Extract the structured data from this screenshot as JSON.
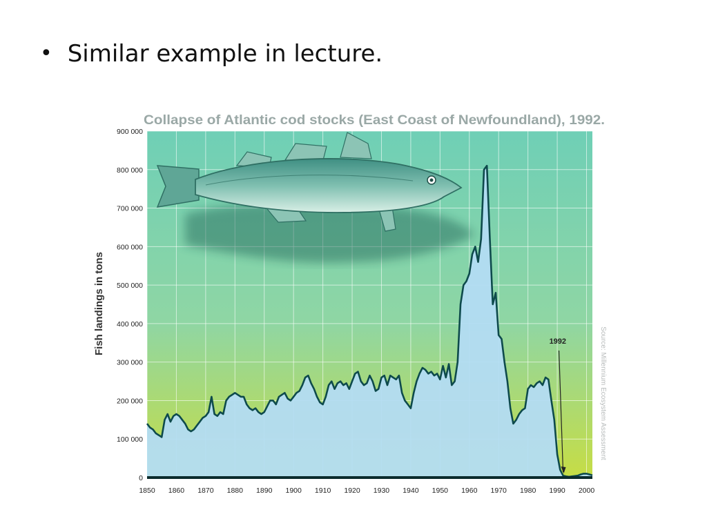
{
  "slide": {
    "bullet_symbol": "•",
    "bullet_text": "Similar example in lecture."
  },
  "chart_data": {
    "type": "area",
    "title": "Collapse of Atlantic cod stocks (East Coast of Newfoundland), 1992.",
    "xlabel": "",
    "ylabel": "Fish landings in tons",
    "source": "Source: Millennium Ecosystem Assessment",
    "annotation": {
      "label": "1992",
      "x": 1992
    },
    "xlim": [
      1850,
      2002
    ],
    "ylim": [
      0,
      900000
    ],
    "x_ticks": [
      1850,
      1860,
      1870,
      1880,
      1890,
      1900,
      1910,
      1920,
      1930,
      1940,
      1950,
      1960,
      1970,
      1980,
      1990,
      2000
    ],
    "y_ticks": [
      0,
      100000,
      200000,
      300000,
      400000,
      500000,
      600000,
      700000,
      800000,
      900000
    ],
    "y_tick_labels": [
      "0",
      "100 000",
      "200 000",
      "300 000",
      "400 000",
      "500 000",
      "600 000",
      "700 000",
      "800 000",
      "900 000"
    ],
    "grid": true,
    "colors": {
      "area_fill": "#b3dcf3",
      "line": "#0e4a4c",
      "bg_top": "#6fcfb6",
      "bg_bottom": "#c6dd45",
      "title": "#9aa8a6"
    },
    "series": [
      {
        "x": [
          1850,
          1851,
          1852,
          1853,
          1854,
          1855,
          1856,
          1857,
          1858,
          1859,
          1860,
          1861,
          1862,
          1863,
          1864,
          1865,
          1866,
          1867,
          1868,
          1869,
          1870,
          1871,
          1872,
          1873,
          1874,
          1875,
          1876,
          1877,
          1878,
          1879,
          1880,
          1881,
          1882,
          1883,
          1884,
          1885,
          1886,
          1887,
          1888,
          1889,
          1890,
          1891,
          1892,
          1893,
          1894,
          1895,
          1896,
          1897,
          1898,
          1899,
          1900,
          1901,
          1902,
          1903,
          1904,
          1905,
          1906,
          1907,
          1908,
          1909,
          1910,
          1911,
          1912,
          1913,
          1914,
          1915,
          1916,
          1917,
          1918,
          1919,
          1920,
          1921,
          1922,
          1923,
          1924,
          1925,
          1926,
          1927,
          1928,
          1929,
          1930,
          1931,
          1932,
          1933,
          1934,
          1935,
          1936,
          1937,
          1938,
          1939,
          1940,
          1941,
          1942,
          1943,
          1944,
          1945,
          1946,
          1947,
          1948,
          1949,
          1950,
          1951,
          1952,
          1953,
          1954,
          1955,
          1956,
          1957,
          1958,
          1959,
          1960,
          1961,
          1962,
          1963,
          1964,
          1965,
          1966,
          1967,
          1968,
          1969,
          1970,
          1971,
          1972,
          1973,
          1974,
          1975,
          1976,
          1977,
          1978,
          1979,
          1980,
          1981,
          1982,
          1983,
          1984,
          1985,
          1986,
          1987,
          1988,
          1989,
          1990,
          1991,
          1992,
          1993,
          1994,
          1995,
          1996,
          1997,
          1998,
          1999,
          2000,
          2001,
          2002
        ],
        "values": [
          140000,
          130000,
          125000,
          115000,
          110000,
          105000,
          150000,
          165000,
          145000,
          160000,
          165000,
          160000,
          150000,
          140000,
          125000,
          120000,
          125000,
          135000,
          145000,
          155000,
          160000,
          170000,
          210000,
          165000,
          160000,
          170000,
          165000,
          200000,
          210000,
          215000,
          220000,
          215000,
          210000,
          210000,
          190000,
          180000,
          175000,
          180000,
          170000,
          165000,
          170000,
          185000,
          200000,
          200000,
          190000,
          210000,
          215000,
          220000,
          205000,
          200000,
          210000,
          220000,
          225000,
          240000,
          260000,
          265000,
          245000,
          230000,
          210000,
          195000,
          190000,
          210000,
          240000,
          250000,
          230000,
          245000,
          250000,
          240000,
          245000,
          230000,
          250000,
          270000,
          275000,
          250000,
          240000,
          245000,
          265000,
          250000,
          225000,
          230000,
          260000,
          265000,
          240000,
          265000,
          260000,
          255000,
          265000,
          220000,
          200000,
          190000,
          180000,
          220000,
          250000,
          270000,
          285000,
          280000,
          270000,
          275000,
          265000,
          270000,
          255000,
          290000,
          260000,
          295000,
          240000,
          250000,
          300000,
          450000,
          500000,
          510000,
          530000,
          580000,
          600000,
          560000,
          620000,
          800000,
          810000,
          620000,
          450000,
          480000,
          370000,
          360000,
          300000,
          250000,
          180000,
          140000,
          150000,
          165000,
          175000,
          180000,
          230000,
          240000,
          235000,
          245000,
          250000,
          240000,
          260000,
          255000,
          200000,
          150000,
          60000,
          20000,
          5000,
          3000,
          2000,
          3000,
          4000,
          5000,
          8000,
          10000,
          10000,
          8000,
          6000
        ]
      }
    ]
  }
}
